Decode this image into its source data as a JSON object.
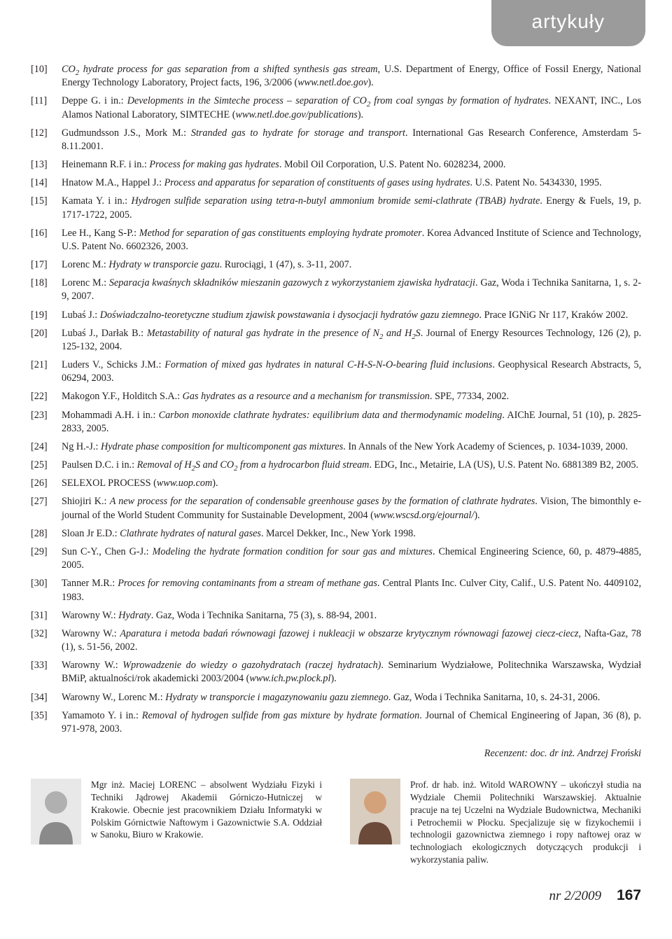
{
  "header_tab": "artykuły",
  "colors": {
    "tab_bg": "#9b9b9b",
    "tab_text": "#ffffff",
    "body_text": "#231f20",
    "page_bg": "#ffffff"
  },
  "typography": {
    "body_font": "Times New Roman",
    "body_size_pt": 10.5,
    "tab_font": "Arial",
    "tab_size_pt": 21
  },
  "references": [
    {
      "num": "[10]",
      "html": "<em>CO<sub>2</sub> hydrate process for gas separation from a shifted synthesis gas stream</em>, U.S. Department of Energy, Office of Fossil Energy, National Energy Technology Laboratory, Project facts, 196, 3/2006 (<em>www.netl.doe.gov</em>)."
    },
    {
      "num": "[11]",
      "html": "Deppe G. i in.: <em>Developments in the Simteche process – separation of CO<sub>2</sub> from coal syngas by formation of hydrates</em>. NEXANT, INC., Los Alamos National Laboratory, SIMTECHE (<em>www.netl.doe.gov/publications</em>)."
    },
    {
      "num": "[12]",
      "html": "Gudmundsson J.S., Mork M.: <em>Stranded gas to hydrate for storage and transport</em>. International Gas Research Conference, Amsterdam 5-8.11.2001."
    },
    {
      "num": "[13]",
      "html": "Heinemann R.F. i in.: <em>Process for making gas hydrates</em>. Mobil Oil Corporation, U.S. Patent No. 6028234, 2000."
    },
    {
      "num": "[14]",
      "html": "Hnatow M.A., Happel J.: <em>Process and apparatus for separation of constituents of gases using hydrates</em>. U.S. Patent No. 5434330, 1995."
    },
    {
      "num": "[15]",
      "html": "Kamata Y. i in.: <em>Hydrogen sulfide separation using tetra-n-butyl ammonium bromide semi-clathrate (TBAB) hydrate</em>. Energy &amp; Fuels, 19, p. 1717-1722, 2005."
    },
    {
      "num": "[16]",
      "html": "Lee H., Kang S-P.: <em>Method for separation of gas constituents employing hydrate promoter</em>. Korea Advanced Institute of Science and Technology, U.S. Patent No. 6602326, 2003."
    },
    {
      "num": "[17]",
      "html": "Lorenc M.: <em>Hydraty w transporcie gazu</em>. Rurociągi, 1 (47), s. 3-11, 2007."
    },
    {
      "num": "[18]",
      "html": "Lorenc M.: <em>Separacja kwaśnych składników mieszanin gazowych z wykorzystaniem zjawiska hydratacji</em>. Gaz, Woda i Technika Sanitarna, 1, s. 2-9, 2007."
    },
    {
      "num": "[19]",
      "html": "Lubaś J.: <em>Doświadczalno-teoretyczne studium zjawisk powstawania i dysocjacji hydratów gazu ziemnego</em>. Prace IGNiG Nr 117, Kraków 2002."
    },
    {
      "num": "[20]",
      "html": "Lubaś J., Darłak B.: <em>Metastability of natural gas hydrate in the presence of N<sub>2</sub> and H<sub>2</sub>S</em>. Journal of Energy Resources Technology, 126 (2), p. 125-132, 2004."
    },
    {
      "num": "[21]",
      "html": "Luders V., Schicks J.M.: <em>Formation of mixed gas hydrates in natural C-H-S-N-O-bearing fluid inclusions</em>. Geophysical Research Abstracts, 5, 06294, 2003."
    },
    {
      "num": "[22]",
      "html": "Makogon Y.F., Holditch S.A.: <em>Gas hydrates as a resource and a mechanism for transmission</em>. SPE, 77334, 2002."
    },
    {
      "num": "[23]",
      "html": "Mohammadi A.H. i in.: <em>Carbon monoxide clathrate hydrates: equilibrium data and thermodynamic modeling</em>. AIChE Journal, 51 (10), p. 2825-2833, 2005."
    },
    {
      "num": "[24]",
      "html": "Ng H.-J.: <em>Hydrate phase composition for multicomponent gas mixtures</em>. In Annals of the New York Academy of Sciences, p. 1034-1039, 2000."
    },
    {
      "num": "[25]",
      "html": "Paulsen D.C. i in.: <em>Removal of H<sub>2</sub>S and CO<sub>2</sub> from a hydrocarbon fluid stream</em>. EDG, Inc., Metairie, LA (US), U.S. Patent No. 6881389 B2, 2005."
    },
    {
      "num": "[26]",
      "html": "SELEXOL PROCESS (<em>www.uop.com</em>)."
    },
    {
      "num": "[27]",
      "html": "Shiojiri K.: <em>A new process for the separation of condensable greenhouse gases by the formation of clathrate hydrates</em>. Vision, The bimonthly e-journal of the World Student Community for Sustainable Development, 2004 (<em>www.wscsd.org/ejournal/</em>)."
    },
    {
      "num": "[28]",
      "html": "Sloan Jr E.D.: <em>Clathrate hydrates of natural gases</em>. Marcel Dekker, Inc., New York 1998."
    },
    {
      "num": "[29]",
      "html": "Sun C-Y., Chen G-J.: <em>Modeling the hydrate formation condition for sour gas and mixtures</em>. Chemical Engineering Science, 60, p. 4879-4885, 2005."
    },
    {
      "num": "[30]",
      "html": "Tanner M.R.: <em>Proces for removing contaminants from a stream of methane gas</em>. Central Plants Inc. Culver City, Calif., U.S. Patent No. 4409102, 1983."
    },
    {
      "num": "[31]",
      "html": "Warowny W.: <em>Hydraty</em>. Gaz, Woda i Technika Sanitarna, 75 (3), s. 88-94, 2001."
    },
    {
      "num": "[32]",
      "html": "Warowny W.: <em>Aparatura i metoda badań równowagi fazowej i nukleacji w obszarze krytycznym równowagi fazowej ciecz-ciecz</em>, Nafta-Gaz, 78 (1), s. 51-56, 2002."
    },
    {
      "num": "[33]",
      "html": "Warowny W.: <em>Wprowadzenie do wiedzy o gazohydratach (raczej hydratach)</em>. Seminarium Wydziałowe, Politechnika Warszawska, Wydział BMiP, aktualności/rok akademicki 2003/2004 (<em>www.ich.pw.plock.pl</em>)."
    },
    {
      "num": "[34]",
      "html": "Warowny W., Lorenc M.: <em>Hydraty w transporcie i magazynowaniu gazu ziemnego</em>. Gaz, Woda i Technika Sanitarna, 10, s. 24-31, 2006."
    },
    {
      "num": "[35]",
      "html": "Yamamoto Y. i in.: <em>Removal of hydrogen sulfide from gas mixture by hydrate formation</em>. Journal of Chemical Engineering of Japan, 36 (8), p. 971-978, 2003."
    }
  ],
  "reviewer_line": "Recenzent: doc. dr inż. Andrzej Froński",
  "bios": [
    {
      "portrait": "bw",
      "text": "Mgr inż. Maciej LORENC – absolwent Wydziału Fizyki i Techniki Jądrowej Akademii Górniczo-Hutniczej w Krakowie. Obecnie jest pracownikiem Działu Informatyki w Polskim Górnictwie Naftowym i Gazownictwie S.A. Oddział w Sanoku, Biuro w Krakowie."
    },
    {
      "portrait": "color",
      "text": "Prof. dr hab. inż. Witold WAROWNY – ukończył studia na Wydziale Chemii Politechniki Warszawskiej. Aktualnie pracuje na tej Uczelni na Wydziale Budownictwa, Mechaniki i Petrochemii w Płocku. Specjalizuje się w fizykochemii i technologii gazownictwa ziemnego i ropy naftowej oraz w technologiach ekologicznych dotyczących produkcji i wykorzystania paliw."
    }
  ],
  "footer": {
    "issue": "nr 2/2009",
    "page": "167"
  }
}
